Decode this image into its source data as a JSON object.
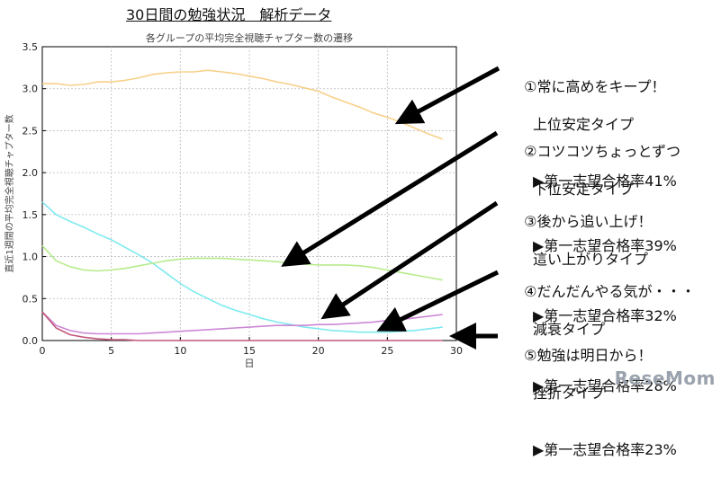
{
  "page_title": "30日間の勉強状況　解析データ",
  "chart_data": {
    "type": "line",
    "title": "各グループの平均完全視聴チャプター数の遷移",
    "xlabel": "日",
    "ylabel": "直近1週間の平均完全視聴チャプター数",
    "xlim": [
      0,
      30
    ],
    "ylim": [
      0,
      3.5
    ],
    "xticks": [
      0,
      5,
      10,
      15,
      20,
      25,
      30
    ],
    "yticks": [
      0.0,
      0.5,
      1.0,
      1.5,
      2.0,
      2.5,
      3.0,
      3.5
    ],
    "grid": true,
    "x": [
      0,
      1,
      2,
      3,
      4,
      5,
      6,
      7,
      8,
      9,
      10,
      11,
      12,
      13,
      14,
      15,
      16,
      17,
      18,
      19,
      20,
      21,
      22,
      23,
      24,
      25,
      26,
      27,
      28,
      29
    ],
    "series": [
      {
        "color": "#f7d08a",
        "values": [
          3.06,
          3.06,
          3.04,
          3.05,
          3.08,
          3.08,
          3.1,
          3.13,
          3.17,
          3.19,
          3.2,
          3.2,
          3.22,
          3.2,
          3.18,
          3.15,
          3.12,
          3.08,
          3.05,
          3.01,
          2.97,
          2.9,
          2.84,
          2.78,
          2.71,
          2.66,
          2.6,
          2.53,
          2.46,
          2.4
        ]
      },
      {
        "color": "#7eeaf0",
        "values": [
          1.65,
          1.5,
          1.42,
          1.35,
          1.27,
          1.2,
          1.11,
          1.02,
          0.92,
          0.8,
          0.68,
          0.58,
          0.5,
          0.42,
          0.36,
          0.31,
          0.26,
          0.22,
          0.19,
          0.16,
          0.14,
          0.12,
          0.11,
          0.1,
          0.1,
          0.1,
          0.11,
          0.12,
          0.14,
          0.16
        ]
      },
      {
        "color": "#b6ec8c",
        "values": [
          1.13,
          0.95,
          0.88,
          0.84,
          0.83,
          0.84,
          0.86,
          0.89,
          0.92,
          0.95,
          0.97,
          0.98,
          0.98,
          0.98,
          0.97,
          0.96,
          0.95,
          0.94,
          0.92,
          0.91,
          0.9,
          0.9,
          0.9,
          0.89,
          0.87,
          0.84,
          0.81,
          0.78,
          0.75,
          0.72
        ]
      },
      {
        "color": "#cc88d6",
        "values": [
          0.34,
          0.18,
          0.12,
          0.09,
          0.08,
          0.08,
          0.08,
          0.08,
          0.09,
          0.1,
          0.11,
          0.12,
          0.13,
          0.14,
          0.15,
          0.16,
          0.17,
          0.18,
          0.18,
          0.18,
          0.19,
          0.19,
          0.2,
          0.21,
          0.22,
          0.24,
          0.25,
          0.27,
          0.29,
          0.31
        ]
      },
      {
        "color": "#c45a7a",
        "values": [
          0.34,
          0.15,
          0.07,
          0.04,
          0.02,
          0.01,
          0.01,
          0.0,
          0.0,
          0.0,
          0.0,
          0.0,
          0.0,
          0.0,
          0.0,
          0.0,
          0.0,
          0.0,
          0.0,
          0.0,
          0.0,
          0.0,
          0.0,
          0.0,
          0.0,
          0.0,
          0.0,
          0.0,
          0.0,
          0.0
        ]
      }
    ]
  },
  "annotations": [
    {
      "line1": "①常に高めをキープ！",
      "line2": "上位安定タイプ",
      "line3": "▶第一志望合格率41%"
    },
    {
      "line1": "②コツコツちょっとずつ",
      "line2": "下位安定タイプ",
      "line3": "▶第一志望合格率39%"
    },
    {
      "line1": "③後から追い上げ！",
      "line2": "這い上がりタイプ",
      "line3": "▶第一志望合格率32%"
    },
    {
      "line1": "④だんだんやる気が・・・",
      "line2": "減衰タイプ",
      "line3": "▶第一志望合格率28%"
    },
    {
      "line1": "⑤勉強は明日から！",
      "line2": "挫折タイプ",
      "line3": "▶第一志望合格率23%"
    }
  ],
  "watermark": "ReseMom"
}
